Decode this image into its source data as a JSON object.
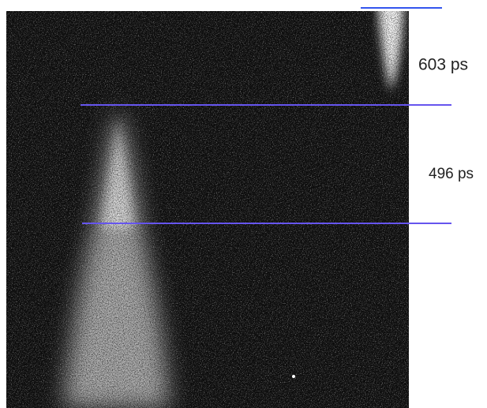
{
  "annotations": [
    {
      "label": "603 ps"
    },
    {
      "label": "496 ps"
    }
  ]
}
